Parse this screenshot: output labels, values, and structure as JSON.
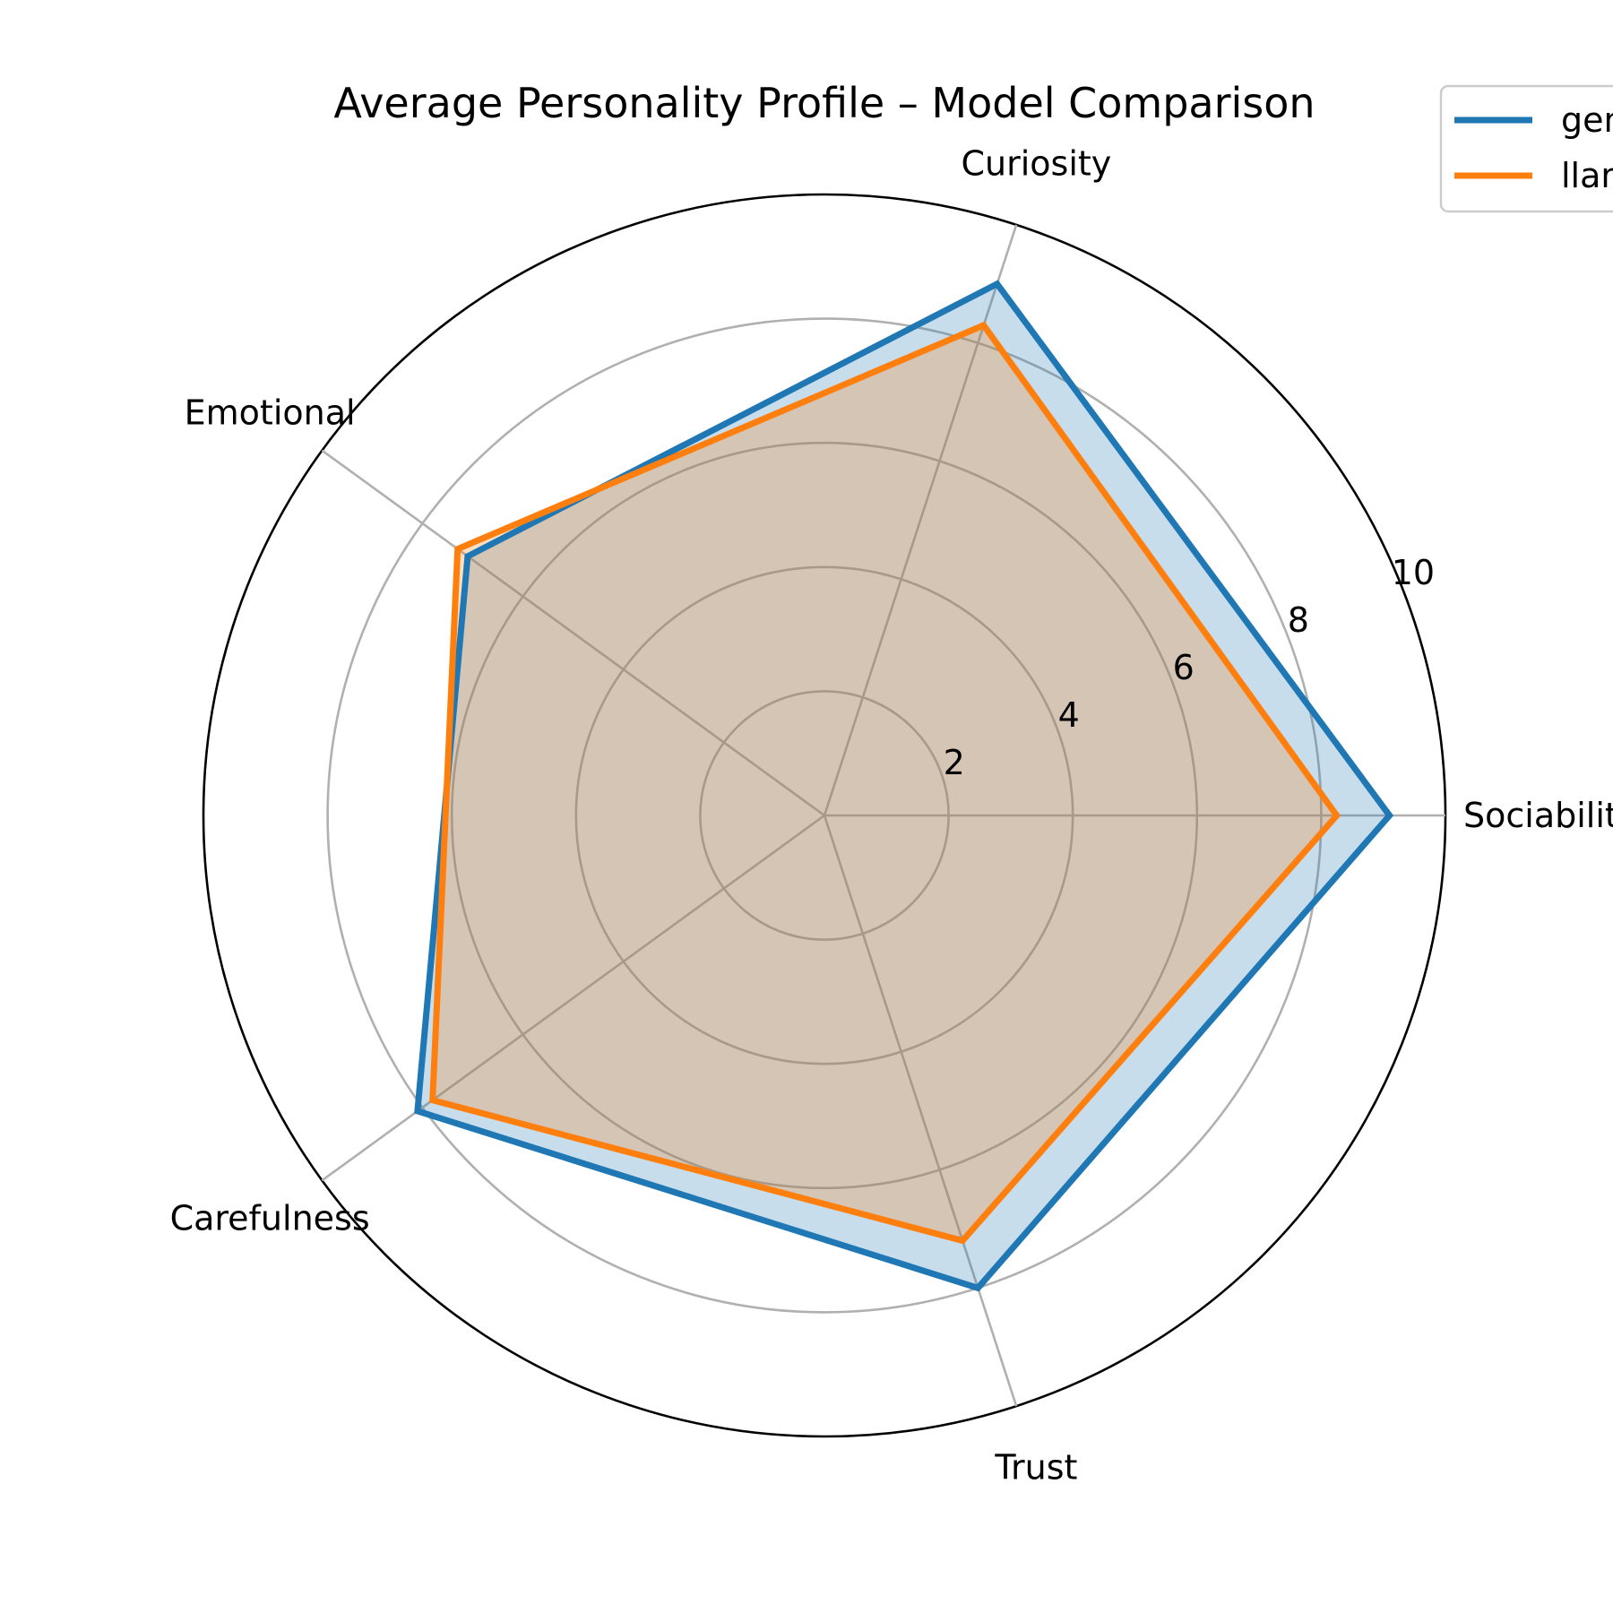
{
  "chart_data": {
    "type": "radar",
    "title": "Average Personality Profile – Model Comparison",
    "categories": [
      "Sociability",
      "Curiosity",
      "Emotional",
      "Carefulness",
      "Trust"
    ],
    "rlim": [
      0,
      10
    ],
    "rticks": [
      2,
      4,
      6,
      8,
      10
    ],
    "rtick_labels": [
      "2",
      "4",
      "6",
      "8",
      "10"
    ],
    "grid": true,
    "legend_position": "top-right (partially cut off)",
    "series": [
      {
        "name": "gen",
        "color": "#1f77b4",
        "values": [
          9.1,
          9.0,
          7.1,
          8.1,
          8.0
        ]
      },
      {
        "name": "llam",
        "color": "#ff7f0e",
        "values": [
          8.25,
          8.3,
          7.3,
          7.8,
          7.2
        ]
      }
    ]
  }
}
